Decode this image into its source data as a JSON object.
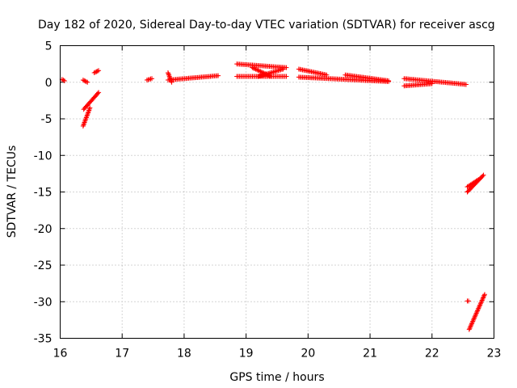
{
  "chart_data": {
    "type": "scatter",
    "title": "Day 182 of 2020, Sidereal Day-to-day VTEC variation (SDTVAR) for receiver ascg",
    "xlabel": "GPS time / hours",
    "ylabel": "SDTVAR / TECUs",
    "xlim": [
      16,
      23
    ],
    "ylim": [
      -35,
      5
    ],
    "xticks": [
      "16",
      "17",
      "18",
      "19",
      "20",
      "21",
      "22",
      "23"
    ],
    "yticks": [
      "5",
      "0",
      "-5",
      "-10",
      "-15",
      "-20",
      "-25",
      "-30",
      "-35"
    ],
    "grid": true,
    "marker": "+",
    "color": "#ff0000",
    "segments": [
      {
        "x0": 16.03,
        "y0": 0.4,
        "x1": 16.07,
        "y1": 0.2
      },
      {
        "x0": 16.37,
        "y0": 0.3,
        "x1": 16.44,
        "y1": 0.0
      },
      {
        "x0": 16.55,
        "y0": 1.3,
        "x1": 16.62,
        "y1": 1.6
      },
      {
        "x0": 16.38,
        "y0": -3.7,
        "x1": 16.62,
        "y1": -1.4
      },
      {
        "x0": 16.37,
        "y0": -6.0,
        "x1": 16.48,
        "y1": -3.5
      },
      {
        "x0": 17.4,
        "y0": 0.3,
        "x1": 17.48,
        "y1": 0.5
      },
      {
        "x0": 17.74,
        "y0": 0.3,
        "x1": 18.55,
        "y1": 0.9
      },
      {
        "x0": 17.74,
        "y0": 1.3,
        "x1": 17.8,
        "y1": 0.0
      },
      {
        "x0": 18.85,
        "y0": 2.5,
        "x1": 19.65,
        "y1": 2.0
      },
      {
        "x0": 18.85,
        "y0": 0.8,
        "x1": 19.65,
        "y1": 0.8
      },
      {
        "x0": 19.1,
        "y0": 2.0,
        "x1": 19.4,
        "y1": 0.8
      },
      {
        "x0": 19.2,
        "y0": 0.8,
        "x1": 19.6,
        "y1": 1.8
      },
      {
        "x0": 19.85,
        "y0": 0.7,
        "x1": 21.3,
        "y1": 0.1
      },
      {
        "x0": 19.85,
        "y0": 1.8,
        "x1": 20.3,
        "y1": 1.0
      },
      {
        "x0": 20.6,
        "y0": 1.0,
        "x1": 21.3,
        "y1": 0.2
      },
      {
        "x0": 21.55,
        "y0": 0.5,
        "x1": 22.55,
        "y1": -0.3
      },
      {
        "x0": 21.55,
        "y0": -0.5,
        "x1": 22.0,
        "y1": -0.2
      },
      {
        "x0": 22.57,
        "y0": -15.0,
        "x1": 22.83,
        "y1": -12.7
      },
      {
        "x0": 22.57,
        "y0": -14.3,
        "x1": 22.75,
        "y1": -13.3
      },
      {
        "x0": 22.6,
        "y0": -33.8,
        "x1": 22.85,
        "y1": -29.0
      },
      {
        "x0": 22.57,
        "y0": -29.9,
        "x1": 22.59,
        "y1": -29.9
      }
    ]
  }
}
